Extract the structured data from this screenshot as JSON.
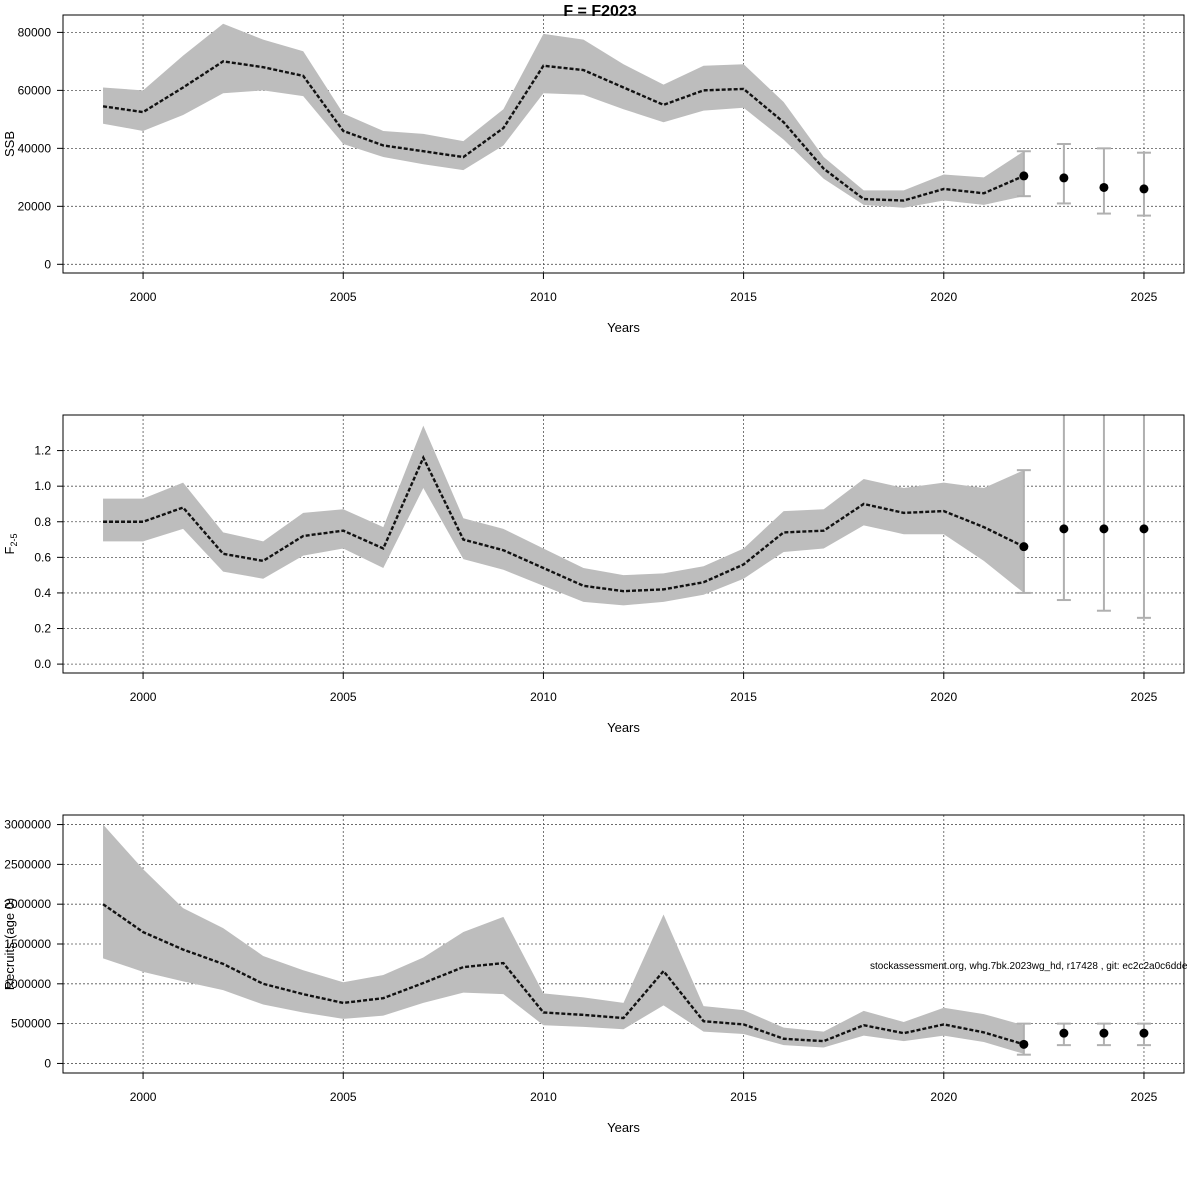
{
  "title": "F = F2023",
  "footnote": "stockassessment.org, whg.7bk.2023wg_hd, r17428 , git: ec2c2a0c6dde",
  "chart_data": [
    {
      "type": "line",
      "name": "SSB",
      "ylabel": "SSB",
      "xlabel": "Years",
      "xlim": [
        1998,
        2026
      ],
      "ylim": [
        -3000,
        86000
      ],
      "yticks": [
        0,
        20000,
        40000,
        60000,
        80000
      ],
      "ytick_labels": [
        "0",
        "20000",
        "40000",
        "60000",
        "80000"
      ],
      "xticks": [
        2000,
        2005,
        2010,
        2015,
        2020,
        2025
      ],
      "grid": true,
      "estimate": {
        "x": [
          1999,
          2000,
          2001,
          2002,
          2003,
          2004,
          2005,
          2006,
          2007,
          2008,
          2009,
          2010,
          2011,
          2012,
          2013,
          2014,
          2015,
          2016,
          2017,
          2018,
          2019,
          2020,
          2021,
          2022
        ],
        "y": [
          54500,
          52500,
          61000,
          70000,
          68000,
          65000,
          46000,
          41000,
          39000,
          37000,
          47000,
          68500,
          67000,
          61000,
          55000,
          60000,
          60500,
          49000,
          33000,
          22500,
          22000,
          26000,
          24500,
          30500
        ],
        "low": [
          48500,
          46000,
          51500,
          59000,
          60000,
          58000,
          41500,
          37000,
          34500,
          32500,
          41000,
          59000,
          58500,
          53500,
          49000,
          53000,
          54000,
          43000,
          29500,
          20500,
          19500,
          22000,
          20500,
          23500
        ],
        "high": [
          61000,
          60000,
          72000,
          83000,
          77500,
          73500,
          52000,
          46000,
          45000,
          42500,
          53500,
          79500,
          77500,
          69000,
          62000,
          68500,
          69000,
          56000,
          37000,
          25500,
          25500,
          31000,
          30000,
          39000
        ]
      },
      "forecast": {
        "x": [
          2022,
          2023,
          2024,
          2025
        ],
        "y": [
          30500,
          29800,
          26500,
          26000
        ],
        "low": [
          23500,
          21000,
          17500,
          16800
        ],
        "high": [
          39000,
          41500,
          40000,
          38500
        ]
      }
    },
    {
      "type": "line",
      "name": "F2-5",
      "ylabel": "F",
      "ylabel_sub": "2-5",
      "xlabel": "Years",
      "xlim": [
        1998,
        2026
      ],
      "ylim": [
        -0.05,
        1.4
      ],
      "yticks": [
        0.0,
        0.2,
        0.4,
        0.6,
        0.8,
        1.0,
        1.2
      ],
      "ytick_labels": [
        "0.0",
        "0.2",
        "0.4",
        "0.6",
        "0.8",
        "1.0",
        "1.2"
      ],
      "xticks": [
        2000,
        2005,
        2010,
        2015,
        2020,
        2025
      ],
      "grid": true,
      "estimate": {
        "x": [
          1999,
          2000,
          2001,
          2002,
          2003,
          2004,
          2005,
          2006,
          2007,
          2008,
          2009,
          2010,
          2011,
          2012,
          2013,
          2014,
          2015,
          2016,
          2017,
          2018,
          2019,
          2020,
          2021,
          2022
        ],
        "y": [
          0.8,
          0.8,
          0.88,
          0.62,
          0.58,
          0.72,
          0.75,
          0.65,
          1.16,
          0.7,
          0.64,
          0.54,
          0.44,
          0.41,
          0.42,
          0.46,
          0.56,
          0.74,
          0.75,
          0.9,
          0.85,
          0.86,
          0.77,
          0.66
        ],
        "low": [
          0.69,
          0.69,
          0.76,
          0.52,
          0.48,
          0.61,
          0.65,
          0.54,
          0.99,
          0.59,
          0.53,
          0.44,
          0.35,
          0.33,
          0.35,
          0.39,
          0.48,
          0.63,
          0.65,
          0.78,
          0.73,
          0.73,
          0.58,
          0.4
        ],
        "high": [
          0.93,
          0.93,
          1.02,
          0.74,
          0.69,
          0.85,
          0.87,
          0.77,
          1.34,
          0.82,
          0.76,
          0.65,
          0.54,
          0.5,
          0.51,
          0.55,
          0.65,
          0.86,
          0.87,
          1.04,
          0.99,
          1.02,
          0.99,
          1.09
        ]
      },
      "forecast": {
        "x": [
          2022,
          2023,
          2024,
          2025
        ],
        "y": [
          0.66,
          0.76,
          0.76,
          0.76
        ],
        "low": [
          0.4,
          0.36,
          0.3,
          0.26
        ],
        "high": [
          1.09,
          1.5,
          1.5,
          1.5
        ]
      }
    },
    {
      "type": "line",
      "name": "Recruits",
      "ylabel": "Recruits (age 0)",
      "xlabel": "Years",
      "xlim": [
        1998,
        2026
      ],
      "ylim": [
        -120000,
        3120000
      ],
      "yticks": [
        0,
        500000,
        1000000,
        1500000,
        2000000,
        2500000,
        3000000
      ],
      "ytick_labels": [
        "0",
        "500000",
        "1000000",
        "1500000",
        "2000000",
        "2500000",
        "3000000"
      ],
      "xticks": [
        2000,
        2005,
        2010,
        2015,
        2020,
        2025
      ],
      "grid": true,
      "estimate": {
        "x": [
          1999,
          2000,
          2001,
          2002,
          2003,
          2004,
          2005,
          2006,
          2007,
          2008,
          2009,
          2010,
          2011,
          2012,
          2013,
          2014,
          2015,
          2016,
          2017,
          2018,
          2019,
          2020,
          2021,
          2022
        ],
        "y": [
          2000000,
          1650000,
          1430000,
          1250000,
          1000000,
          870000,
          760000,
          820000,
          1010000,
          1210000,
          1260000,
          640000,
          610000,
          570000,
          1160000,
          530000,
          490000,
          310000,
          280000,
          480000,
          380000,
          490000,
          390000,
          240000
        ],
        "low": [
          1320000,
          1150000,
          1030000,
          920000,
          740000,
          640000,
          560000,
          600000,
          760000,
          890000,
          870000,
          480000,
          460000,
          430000,
          730000,
          400000,
          370000,
          230000,
          200000,
          350000,
          280000,
          350000,
          270000,
          120000
        ],
        "high": [
          3000000,
          2440000,
          1950000,
          1700000,
          1350000,
          1170000,
          1020000,
          1110000,
          1330000,
          1650000,
          1840000,
          880000,
          830000,
          760000,
          1870000,
          720000,
          670000,
          450000,
          400000,
          660000,
          520000,
          700000,
          620000,
          480000
        ]
      },
      "forecast": {
        "x": [
          2022,
          2023,
          2024,
          2025
        ],
        "y": [
          240000,
          380000,
          380000,
          380000
        ],
        "low": [
          110000,
          230000,
          230000,
          230000
        ],
        "high": [
          500000,
          500000,
          500000,
          500000
        ]
      }
    }
  ]
}
